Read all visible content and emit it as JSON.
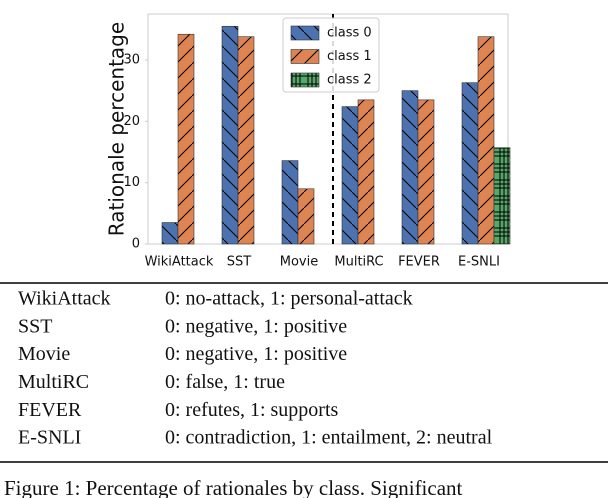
{
  "chart_data": {
    "type": "bar",
    "ylabel": "Rationale percentage",
    "categories": [
      "WikiAttack",
      "SST",
      "Movie",
      "MultiRC",
      "FEVER",
      "E-SNLI"
    ],
    "series": [
      {
        "name": "class 0",
        "color": "#4c72b0",
        "hatch": "\\",
        "values": [
          3.5,
          35.5,
          13.6,
          22.4,
          25.0,
          26.3
        ]
      },
      {
        "name": "class 1",
        "color": "#dd8452",
        "hatch": "/",
        "values": [
          34.2,
          33.8,
          9.0,
          23.5,
          23.5,
          33.8
        ]
      },
      {
        "name": "class 2",
        "color": "#55a868",
        "hatch": "+",
        "values": [
          null,
          null,
          null,
          null,
          null,
          15.7
        ]
      }
    ],
    "ylim": [
      0,
      37.5
    ],
    "yticks": [
      0,
      10,
      20,
      30
    ],
    "legend": "upper center"
  },
  "table": {
    "rows": [
      [
        "WikiAttack",
        "0: no-attack, 1: personal-attack"
      ],
      [
        "SST",
        "0: negative, 1: positive"
      ],
      [
        "Movie",
        "0: negative, 1: positive"
      ],
      [
        "MultiRC",
        "0: false, 1: true"
      ],
      [
        "FEVER",
        "0: refutes, 1: supports"
      ],
      [
        "E-SNLI",
        "0: contradiction, 1: entailment, 2: neutral"
      ]
    ]
  },
  "caption": "Figure 1: Percentage of rationales by class. Significant"
}
